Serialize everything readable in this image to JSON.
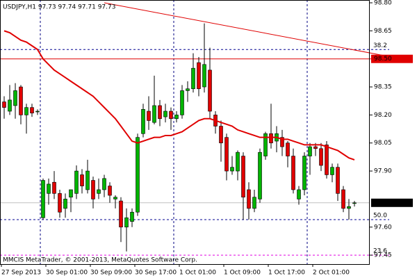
{
  "chart_data": {
    "type": "candlestick",
    "title": "USDJPY,H1  97.73 97.74 97.71 97.73",
    "footer": "MMCIS MetaTrader, © 2001-2013, MetaQuotes Software Corp.",
    "categories": [
      "27 Sep 2013",
      null,
      null,
      null,
      null,
      null,
      null,
      null,
      "30 Sep 01:00",
      null,
      null,
      null,
      null,
      null,
      null,
      null,
      "30 Sep 09:00",
      null,
      null,
      null,
      null,
      null,
      null,
      null,
      "30 Sep 17:00",
      null,
      null,
      null,
      null,
      null,
      null,
      null,
      "1 Oct 01:00",
      null,
      null,
      null,
      null,
      null,
      null,
      null,
      "1 Oct 09:00",
      null,
      null,
      null,
      null,
      null,
      null,
      null,
      "1 Oct 17:00",
      null,
      null,
      null,
      null,
      null,
      null,
      null,
      "2 Oct 01:00",
      null,
      null,
      null,
      null,
      null,
      null,
      null
    ],
    "open": [
      98.27,
      98.22,
      98.25,
      98.35,
      98.2,
      98.24,
      98.22,
      97.65,
      97.78,
      97.84,
      97.78,
      97.7,
      97.76,
      97.78,
      97.88,
      97.8,
      97.85,
      97.78,
      97.8,
      97.82,
      97.75,
      97.74,
      97.6,
      97.63,
      97.68,
      98.1,
      98.22,
      98.16,
      98.25,
      98.19,
      98.22,
      98.18,
      98.2,
      98.33,
      98.34,
      98.48,
      98.35,
      98.44,
      98.2,
      98.14,
      98.08,
      97.9,
      97.9,
      97.98,
      97.8,
      97.7,
      97.75,
      97.98,
      98.1,
      98.06,
      98.08,
      98.05,
      97.98,
      97.75,
      97.8,
      97.98,
      98.03,
      98.02,
      98.04,
      97.88,
      97.92,
      97.8,
      97.7,
      97.73
    ],
    "high": [
      98.3,
      98.36,
      98.37,
      98.36,
      98.26,
      98.26,
      98.23,
      97.86,
      97.86,
      97.9,
      97.8,
      97.78,
      97.8,
      97.93,
      97.91,
      97.96,
      97.87,
      97.86,
      97.88,
      97.84,
      97.77,
      97.76,
      97.7,
      97.7,
      98.1,
      98.26,
      98.3,
      98.41,
      98.28,
      98.26,
      98.24,
      98.22,
      98.36,
      98.38,
      98.53,
      98.51,
      98.69,
      98.56,
      98.22,
      98.17,
      98.1,
      97.98,
      98.01,
      98.0,
      97.84,
      97.8,
      98.02,
      98.11,
      98.26,
      98.14,
      98.12,
      98.06,
      98.02,
      97.82,
      98.0,
      98.05,
      98.05,
      98.05,
      98.06,
      97.94,
      97.94,
      97.82,
      97.75,
      97.74
    ],
    "low": [
      98.18,
      98.2,
      98.18,
      98.15,
      98.1,
      98.19,
      98.2,
      97.64,
      97.72,
      97.75,
      97.65,
      97.65,
      97.68,
      97.75,
      97.78,
      97.78,
      97.7,
      97.75,
      97.76,
      97.73,
      97.7,
      97.52,
      97.47,
      97.6,
      97.66,
      98.08,
      98.12,
      98.15,
      98.14,
      98.16,
      98.12,
      98.16,
      98.18,
      98.27,
      98.32,
      98.3,
      98.32,
      98.18,
      98.1,
      97.95,
      97.85,
      97.88,
      97.85,
      97.64,
      97.64,
      97.68,
      97.73,
      97.96,
      98.02,
      98.0,
      97.98,
      97.92,
      97.78,
      97.72,
      97.77,
      97.88,
      97.98,
      97.9,
      97.86,
      97.84,
      97.74,
      97.68,
      97.64,
      97.71
    ],
    "close": [
      98.24,
      98.28,
      98.33,
      98.2,
      98.24,
      98.21,
      98.22,
      97.85,
      97.83,
      97.78,
      97.68,
      97.75,
      97.8,
      97.9,
      97.82,
      97.9,
      97.75,
      97.8,
      97.86,
      97.77,
      97.76,
      97.6,
      97.65,
      97.68,
      98.08,
      98.23,
      98.17,
      98.25,
      98.18,
      98.22,
      98.18,
      98.2,
      98.33,
      98.34,
      98.45,
      98.34,
      98.47,
      98.22,
      98.14,
      98.05,
      97.9,
      97.92,
      98.0,
      97.76,
      97.7,
      97.76,
      98.0,
      98.1,
      98.05,
      98.1,
      98.03,
      97.98,
      97.8,
      97.8,
      97.98,
      98.03,
      98.02,
      97.93,
      97.88,
      97.92,
      97.78,
      97.7,
      97.71,
      97.73
    ],
    "up_color": "#00b400",
    "down_color": "#e00000",
    "wick_color": "#000000",
    "ma": {
      "color": "#e00000",
      "values": [
        98.65,
        98.64,
        98.62,
        98.6,
        98.59,
        98.57,
        98.55,
        98.5,
        98.47,
        98.44,
        98.42,
        98.4,
        98.38,
        98.36,
        98.34,
        98.32,
        98.3,
        98.27,
        98.24,
        98.21,
        98.18,
        98.14,
        98.1,
        98.06,
        98.05,
        98.06,
        98.07,
        98.08,
        98.08,
        98.09,
        98.09,
        98.1,
        98.11,
        98.13,
        98.15,
        98.17,
        98.18,
        98.18,
        98.17,
        98.16,
        98.15,
        98.14,
        98.12,
        98.11,
        98.1,
        98.09,
        98.08,
        98.08,
        98.08,
        98.08,
        98.07,
        98.07,
        98.06,
        98.05,
        98.04,
        98.04,
        98.04,
        98.04,
        98.03,
        98.02,
        98.01,
        97.99,
        97.97,
        97.96
      ]
    },
    "trend_line": {
      "color": "#e00000",
      "start": 98.8,
      "end": 98.49
    },
    "fib_levels": [
      {
        "name": "38.2",
        "price": 98.55,
        "color": "#000090"
      },
      {
        "name": "50.0",
        "price": 97.64,
        "color": "#000090"
      },
      {
        "name": "23.6",
        "price": 97.45,
        "color": "#e000e0"
      }
    ],
    "alert_line": {
      "value": 98.5,
      "label": "98.50",
      "color": "#e00000"
    },
    "current_price": {
      "value": 97.73,
      "color": "#c0c0c0"
    },
    "ylim": [
      97.402,
      98.815
    ],
    "yticks": [
      {
        "value": 98.8,
        "label": "98.80"
      },
      98.65,
      98.35,
      {
        "value": 98.2,
        "label": "98.20"
      },
      98.05,
      {
        "value": 97.9,
        "label": "97.90"
      },
      {
        "value": 97.6,
        "label": "97.60"
      },
      97.45
    ],
    "grid": false
  }
}
